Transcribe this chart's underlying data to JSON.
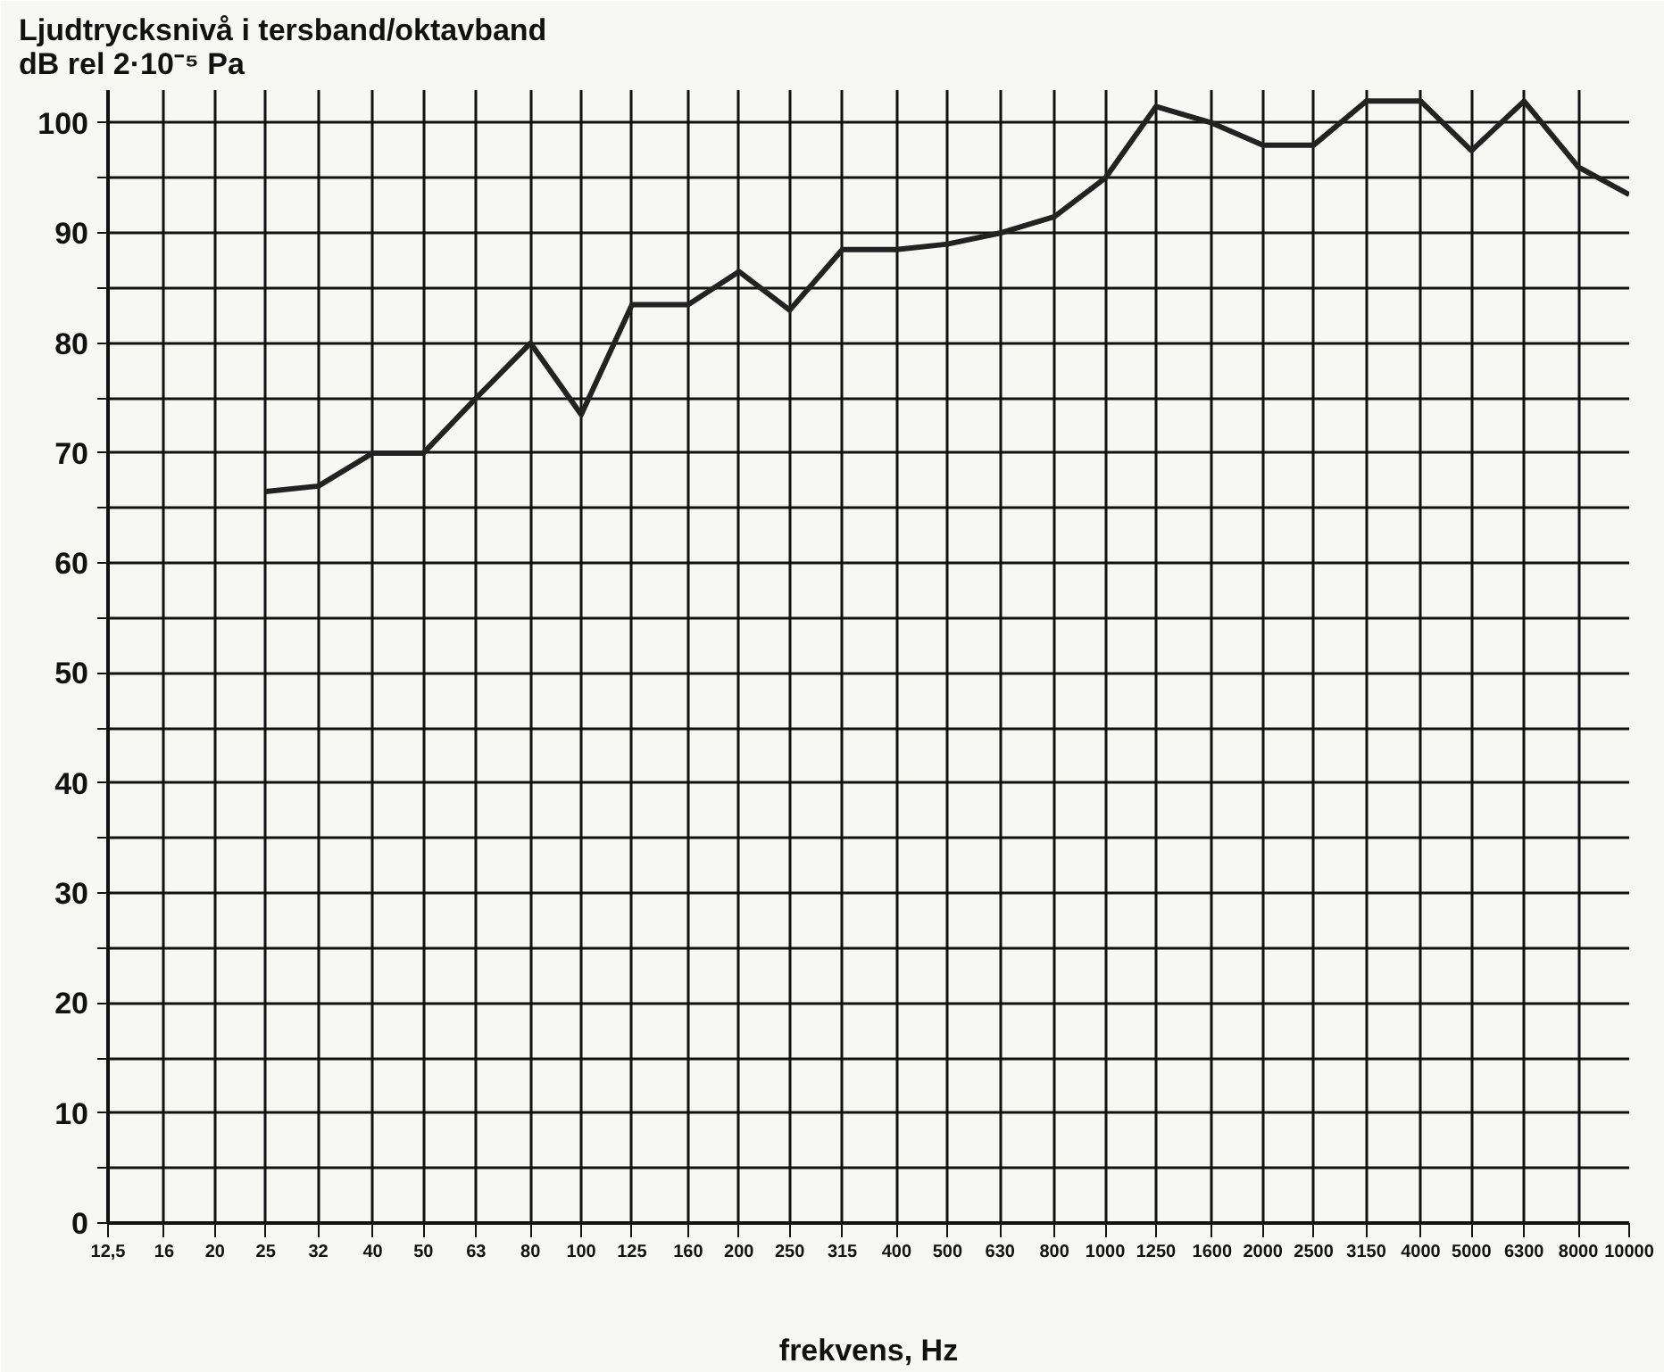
{
  "chart_data": {
    "type": "line",
    "ylabel": "Ljudtrycksnivå i tersband/oktavband\ndB rel 2·10⁻⁵ Pa",
    "xlabel": "frekvens, Hz",
    "log": "x",
    "xlim": [
      12.5,
      10000
    ],
    "xticks": [
      {
        "value": 12.5,
        "label": "12,5"
      },
      16,
      20,
      25,
      {
        "value": 31.5,
        "label": "32"
      },
      40,
      50,
      63,
      80,
      100,
      125,
      160,
      200,
      250,
      315,
      400,
      500,
      630,
      800,
      1000,
      1250,
      1600,
      2000,
      2500,
      3150,
      4000,
      5000,
      6300,
      8000,
      10000
    ],
    "ylim": [
      0,
      103
    ],
    "yticks": [
      0,
      {
        "value": 5,
        "label": null
      },
      10,
      {
        "value": 15,
        "label": null
      },
      20,
      {
        "value": 25,
        "label": null
      },
      30,
      {
        "value": 35,
        "label": null
      },
      40,
      {
        "value": 45,
        "label": null
      },
      50,
      {
        "value": 55,
        "label": null
      },
      60,
      {
        "value": 65,
        "label": null
      },
      70,
      {
        "value": 75,
        "label": null
      },
      80,
      {
        "value": 85,
        "label": null
      },
      90,
      {
        "value": 95,
        "label": null
      },
      100
    ],
    "grid": true,
    "line_style": "solid",
    "series": [
      {
        "color": "#222222",
        "x": [
          25,
          31.5,
          40,
          50,
          63,
          80,
          100,
          125,
          160,
          200,
          250,
          315,
          400,
          500,
          630,
          800,
          1000,
          1250,
          1600,
          2000,
          2500,
          3150,
          4000,
          5000,
          6300,
          8000,
          10000
        ],
        "values": [
          66.5,
          67,
          70,
          70,
          75,
          80,
          73.5,
          83.5,
          83.5,
          86.5,
          83,
          88.5,
          88.5,
          89,
          90,
          91.5,
          95,
          101.5,
          100,
          98,
          98,
          102,
          102,
          97.5,
          102,
          96,
          93.5
        ]
      }
    ]
  }
}
